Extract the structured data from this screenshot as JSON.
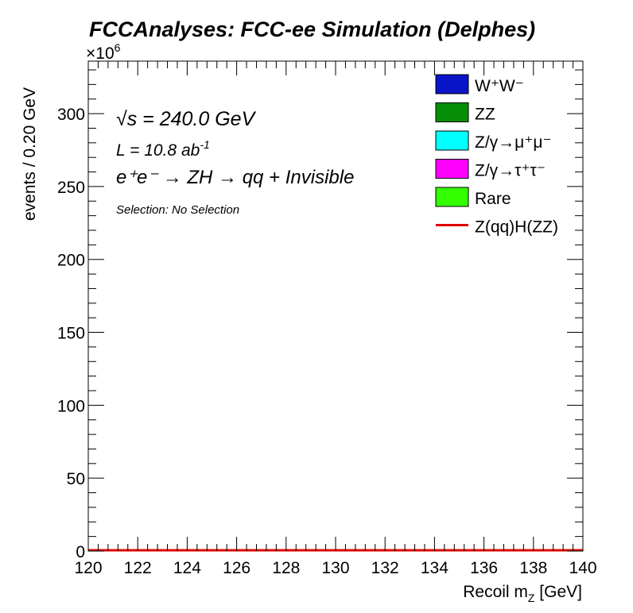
{
  "chart_data": {
    "type": "area",
    "title": "FCCAnalyses: FCC-ee Simulation (Delphes)",
    "xlabel": {
      "main": "Recoil m",
      "sub": "Z",
      "rest": " [GeV]"
    },
    "ylabel": "events / 0.20 GeV",
    "y_multiplier": {
      "base": "×10",
      "exp": "6"
    },
    "xlim": [
      120,
      140
    ],
    "ylim": [
      0,
      336
    ],
    "x_ticks": [
      "120",
      "122",
      "124",
      "126",
      "128",
      "130",
      "132",
      "134",
      "136",
      "138",
      "140"
    ],
    "y_ticks": [
      "0",
      "50",
      "100",
      "150",
      "200",
      "250",
      "300"
    ],
    "annotations": {
      "sqrt_s": {
        "root": "√",
        "s": "s",
        "rest": " = 240.0 GeV"
      },
      "lumi": {
        "main": "L = 10.8 ab",
        "exp": "-1"
      },
      "process": "e⁺e⁻ → ZH → qq + Invisible",
      "selection": "Selection: No Selection"
    },
    "legend_position": "top-right",
    "series": [
      {
        "name": "W⁺W⁻",
        "style": "fill",
        "color": "#0a14c8",
        "values": [
          0,
          0
        ]
      },
      {
        "name": "ZZ",
        "style": "fill",
        "color": "#068f06",
        "values": [
          0,
          0
        ]
      },
      {
        "name": "Z/γ→μ⁺μ⁻",
        "style": "fill",
        "color": "#00ffff",
        "values": [
          0,
          0
        ]
      },
      {
        "name": "Z/γ→τ⁺τ⁻",
        "style": "fill",
        "color": "#ff00ff",
        "values": [
          0,
          0
        ]
      },
      {
        "name": "Rare",
        "style": "fill",
        "color": "#33ff00",
        "values": [
          0,
          0
        ]
      },
      {
        "name": "Z(qq)H(ZZ)",
        "style": "line",
        "color": "#e00000",
        "values": [
          0,
          0
        ]
      }
    ],
    "x": [
      120,
      140
    ]
  }
}
